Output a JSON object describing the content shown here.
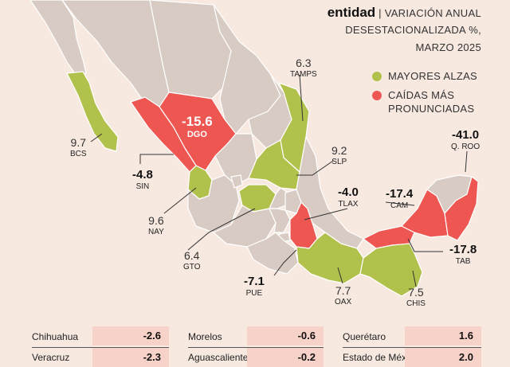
{
  "header": {
    "title_bold": "entidad",
    "separator": "|",
    "subtitle_line1": "VARIACIÓN ANUAL",
    "subtitle_line2": "DESESTACIONALIZADA %,",
    "subtitle_line3": "MARZO 2025"
  },
  "legend": [
    {
      "label": "MAYORES ALZAS",
      "color": "#b2c14c"
    },
    {
      "label_line1": "CAÍDAS MÁS",
      "label_line2": "PRONUNCIADAS",
      "color": "#ee5652"
    }
  ],
  "map_labels": {
    "dgo": {
      "value": "-15.6",
      "code": "DGO"
    },
    "tamps": {
      "value": "6.3",
      "code": "TAMPS"
    },
    "bcs": {
      "value": "9.7",
      "code": "BCS"
    },
    "slp": {
      "value": "9.2",
      "code": "SLP"
    },
    "qroo": {
      "value": "-41.0",
      "code": "Q. ROO"
    },
    "sin": {
      "value": "-4.8",
      "code": "SIN"
    },
    "tlax": {
      "value": "-4.0",
      "code": "TLAX"
    },
    "cam": {
      "value": "-17.4",
      "code": "CAM"
    },
    "nay": {
      "value": "9.6",
      "code": "NAY"
    },
    "gto": {
      "value": "6.4",
      "code": "GTO"
    },
    "tab": {
      "value": "-17.8",
      "code": "TAB"
    },
    "pue": {
      "value": "-7.1",
      "code": "PUE"
    },
    "oax": {
      "value": "7.7",
      "code": "OAX"
    },
    "chis": {
      "value": "7.5",
      "code": "CHIS"
    }
  },
  "table": {
    "columns": [
      [
        {
          "state": "Chihuahua",
          "value": "-2.6"
        },
        {
          "state": "Veracruz",
          "value": "-2.3"
        }
      ],
      [
        {
          "state": "Morelos",
          "value": "-0.6"
        },
        {
          "state": "Aguascalientes",
          "value": "-0.2"
        }
      ],
      [
        {
          "state": "Querétaro",
          "value": "1.6"
        },
        {
          "state": "Estado de México",
          "value": "2.0"
        }
      ]
    ]
  }
}
